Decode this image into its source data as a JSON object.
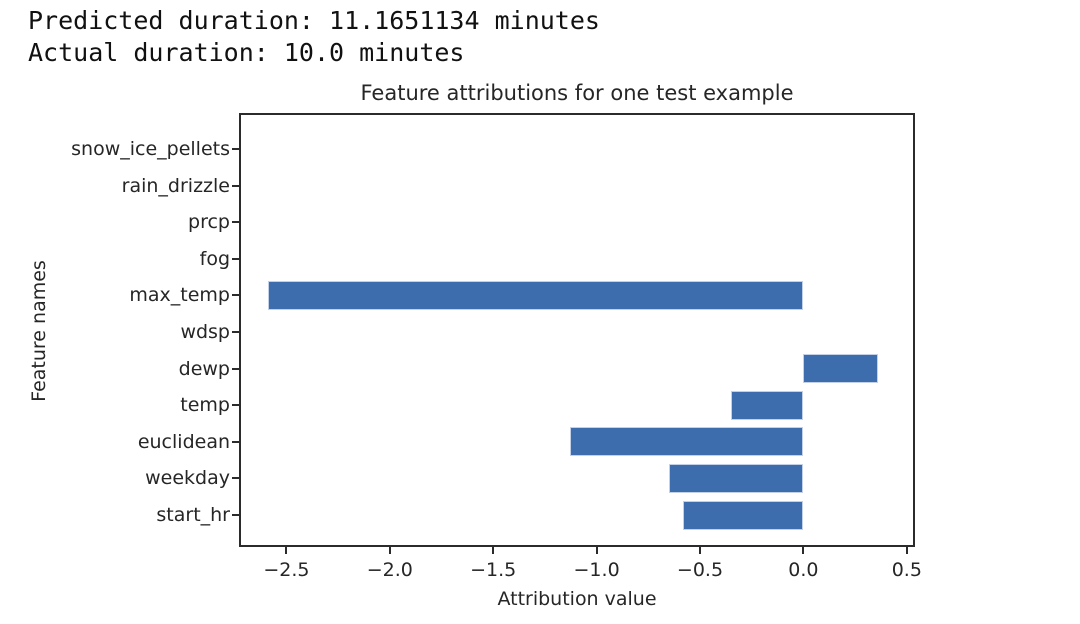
{
  "notebook_output": {
    "line1": "Predicted duration: 11.1651134 minutes",
    "line2": "Actual duration: 10.0 minutes"
  },
  "chart_data": {
    "type": "bar",
    "orientation": "horizontal",
    "title": "Feature attributions for one test example",
    "xlabel": "Attribution value",
    "ylabel": "Feature names",
    "categories": [
      "snow_ice_pellets",
      "rain_drizzle",
      "prcp",
      "fog",
      "max_temp",
      "wdsp",
      "dewp",
      "temp",
      "euclidean",
      "weekday",
      "start_hr"
    ],
    "values": [
      0,
      0,
      0,
      0,
      -2.59,
      0,
      0.36,
      -0.35,
      -1.13,
      -0.65,
      -0.58
    ],
    "xlim": [
      -2.72,
      0.53
    ],
    "xticks": [
      -2.5,
      -2.0,
      -1.5,
      -1.0,
      -0.5,
      0.0,
      0.5
    ],
    "grid": false,
    "legend": "none",
    "bar_color": "#3d6dac",
    "bar_edge_color": "#c3d1e8",
    "spine_color": "#2b2b2b",
    "text_color": "#262626"
  }
}
